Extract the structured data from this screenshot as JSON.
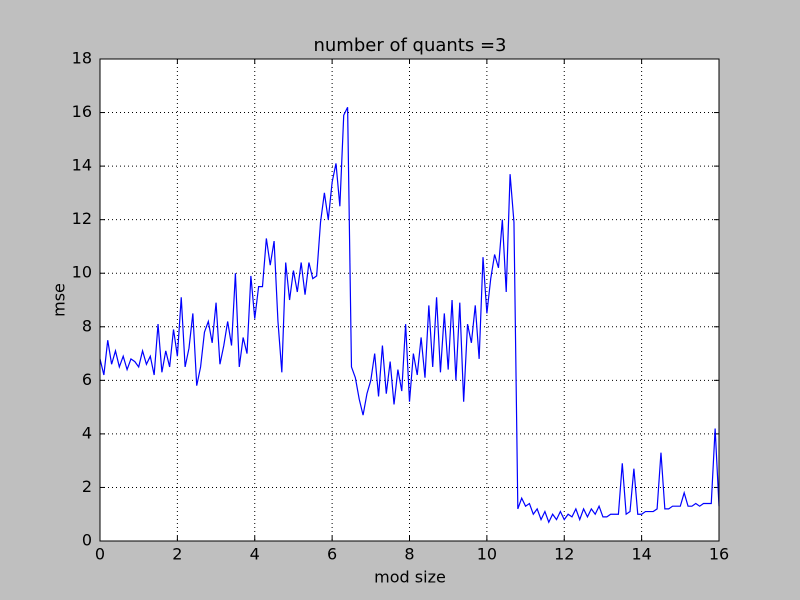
{
  "chart_data": {
    "type": "line",
    "title": "number of quants =3",
    "xlabel": "mod size",
    "ylabel": "mse",
    "x": [
      0,
      0.1,
      0.2,
      0.3,
      0.4,
      0.5,
      0.6,
      0.7,
      0.8,
      0.9,
      1,
      1.1,
      1.2,
      1.3,
      1.4,
      1.5,
      1.6,
      1.7,
      1.8,
      1.9,
      2,
      2.1,
      2.2,
      2.3,
      2.4,
      2.5,
      2.6,
      2.7,
      2.8,
      2.9,
      3,
      3.1,
      3.2,
      3.3,
      3.4,
      3.5,
      3.6,
      3.7,
      3.8,
      3.9,
      4,
      4.1,
      4.2,
      4.3,
      4.4,
      4.5,
      4.6,
      4.7,
      4.8,
      4.9,
      5,
      5.1,
      5.2,
      5.3,
      5.4,
      5.5,
      5.6,
      5.7,
      5.8,
      5.9,
      6,
      6.1,
      6.2,
      6.3,
      6.4,
      6.5,
      6.6,
      6.7,
      6.8,
      6.9,
      7,
      7.1,
      7.2,
      7.3,
      7.4,
      7.5,
      7.6,
      7.7,
      7.8,
      7.9,
      8,
      8.1,
      8.2,
      8.3,
      8.4,
      8.5,
      8.6,
      8.7,
      8.8,
      8.9,
      9,
      9.1,
      9.2,
      9.3,
      9.4,
      9.5,
      9.6,
      9.7,
      9.8,
      9.9,
      10,
      10.1,
      10.2,
      10.3,
      10.4,
      10.5,
      10.6,
      10.7,
      10.8,
      10.9,
      11,
      11.1,
      11.2,
      11.3,
      11.4,
      11.5,
      11.6,
      11.7,
      11.8,
      11.9,
      12,
      12.1,
      12.2,
      12.3,
      12.4,
      12.5,
      12.6,
      12.7,
      12.8,
      12.9,
      13,
      13.1,
      13.2,
      13.3,
      13.4,
      13.5,
      13.6,
      13.7,
      13.8,
      13.9,
      14,
      14.1,
      14.2,
      14.3,
      14.4,
      14.5,
      14.6,
      14.7,
      14.8,
      14.9,
      15,
      15.1,
      15.2,
      15.3,
      15.4,
      15.5,
      15.6,
      15.7,
      15.8,
      15.9,
      16
    ],
    "series": [
      {
        "name": "mse",
        "color": "#0000ff",
        "values": [
          6.8,
          6.2,
          7.5,
          6.6,
          7.1,
          6.5,
          6.9,
          6.4,
          6.8,
          6.7,
          6.5,
          7.1,
          6.6,
          6.9,
          6.2,
          8.1,
          6.3,
          7.1,
          6.5,
          7.9,
          6.9,
          9.1,
          6.5,
          7.2,
          8.5,
          5.8,
          6.5,
          7.8,
          8.2,
          7.4,
          8.9,
          6.6,
          7.3,
          8.2,
          7.3,
          10.0,
          6.5,
          7.6,
          7.0,
          9.9,
          8.3,
          9.5,
          9.5,
          11.3,
          10.3,
          11.2,
          8.2,
          6.3,
          10.4,
          9.0,
          10.1,
          9.3,
          10.4,
          9.2,
          10.4,
          9.8,
          9.9,
          11.9,
          13.0,
          12.0,
          13.4,
          14.1,
          12.5,
          15.9,
          16.2,
          6.5,
          6.1,
          5.3,
          4.7,
          5.5,
          6.0,
          7.0,
          5.4,
          7.3,
          5.5,
          6.7,
          5.1,
          6.4,
          5.6,
          8.1,
          5.2,
          7.0,
          6.2,
          7.6,
          6.1,
          8.8,
          6.5,
          9.1,
          6.3,
          8.5,
          6.4,
          9.0,
          6.0,
          8.9,
          5.2,
          8.1,
          7.4,
          8.8,
          6.8,
          10.6,
          8.5,
          9.8,
          10.7,
          10.2,
          12.0,
          9.3,
          13.7,
          11.9,
          1.2,
          1.6,
          1.3,
          1.4,
          1.0,
          1.2,
          0.8,
          1.1,
          0.7,
          1.0,
          0.8,
          1.1,
          0.8,
          1.0,
          0.9,
          1.2,
          0.8,
          1.2,
          0.9,
          1.2,
          1.0,
          1.3,
          0.9,
          0.9,
          1.0,
          1.0,
          1.0,
          2.9,
          1.0,
          1.1,
          2.7,
          1.0,
          1.0,
          1.1,
          1.1,
          1.1,
          1.2,
          3.3,
          1.2,
          1.2,
          1.3,
          1.3,
          1.3,
          1.8,
          1.3,
          1.3,
          1.4,
          1.3,
          1.4,
          1.4,
          1.4,
          4.2,
          1.3
        ]
      }
    ],
    "xlim": [
      0,
      16
    ],
    "xticks": [
      0,
      2,
      4,
      6,
      8,
      10,
      12,
      14,
      16
    ],
    "ylim": [
      0,
      18
    ],
    "yticks": [
      0,
      2,
      4,
      6,
      8,
      10,
      12,
      14,
      16,
      18
    ],
    "grid": true
  }
}
